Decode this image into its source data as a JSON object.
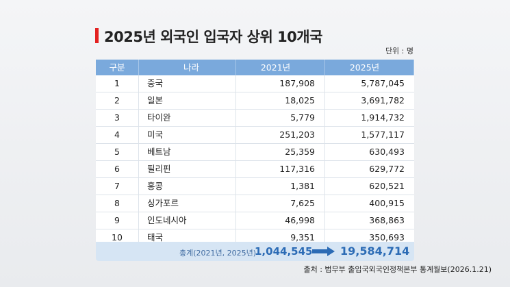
{
  "header": {
    "title": "2025년 외국인 입국자 상위 10개국",
    "unit": "단위 : 명"
  },
  "table": {
    "columns": [
      "구분",
      "나라",
      "2021년",
      "2025년"
    ],
    "rows": [
      [
        "1",
        "중국",
        "187,908",
        "5,787,045"
      ],
      [
        "2",
        "일본",
        "18,025",
        "3,691,782"
      ],
      [
        "3",
        "타이완",
        "5,779",
        "1,914,732"
      ],
      [
        "4",
        "미국",
        "251,203",
        "1,577,117"
      ],
      [
        "5",
        "베트남",
        "25,359",
        "630,493"
      ],
      [
        "6",
        "필리핀",
        "117,316",
        "629,772"
      ],
      [
        "7",
        "홍콩",
        "1,381",
        "620,521"
      ],
      [
        "8",
        "싱가포르",
        "7,625",
        "400,915"
      ],
      [
        "9",
        "인도네시아",
        "46,998",
        "368,863"
      ],
      [
        "10",
        "태국",
        "9,351",
        "350,693"
      ]
    ],
    "total": {
      "label": "총계(2021년, 2025년)",
      "value_2021": "1,044,545",
      "value_2025": "19,584,714"
    }
  },
  "footer": {
    "source": "출처 : 법무부 출입국외국인정책본부 통계월보(2026.1.21)"
  }
}
